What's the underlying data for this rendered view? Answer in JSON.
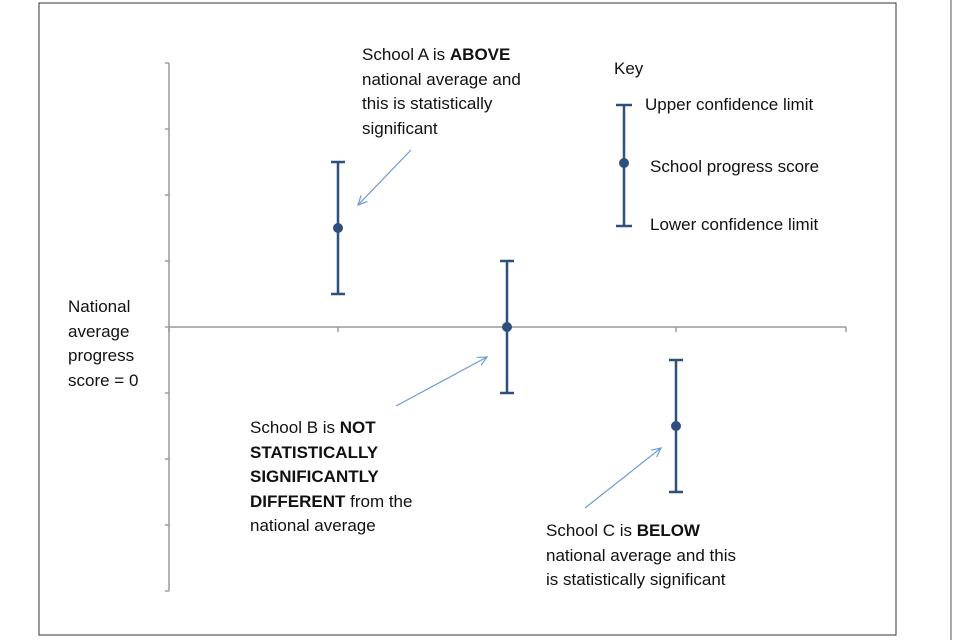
{
  "chart_data": {
    "type": "errorbar",
    "title": "",
    "xlabel": "",
    "ylabel": "",
    "ylim": [
      -4,
      4
    ],
    "categories": [
      "School A",
      "School B",
      "School C"
    ],
    "series": [
      {
        "name": "School progress score",
        "values": [
          1.5,
          0,
          -1.5
        ],
        "upper": [
          2.5,
          1,
          -0.5
        ],
        "lower": [
          0.5,
          -1,
          -2.5
        ]
      }
    ],
    "baseline_label": [
      "National",
      "average",
      "progress",
      "score = 0"
    ],
    "key": {
      "title": "Key",
      "upper": "Upper confidence limit",
      "point": "School progress score",
      "lower": "Lower confidence limit"
    },
    "annotations": {
      "school_a": {
        "l1_a": "School A is ",
        "l1_b": "ABOVE",
        "l2": "national average and",
        "l3": "this is statistically",
        "l4": "significant"
      },
      "school_b": {
        "l1_a": "School B is ",
        "l1_b": "NOT",
        "l2": "STATISTICALLY",
        "l3": "SIGNIFICANTLY",
        "l4_a": "DIFFERENT",
        "l4_b": " from the",
        "l5": "national average"
      },
      "school_c": {
        "l1_a": "School C is ",
        "l1_b": "BELOW",
        "l2": "national average and this",
        "l3": "is statistically significant"
      }
    },
    "colors": {
      "marker": "#2f4f7f",
      "axis": "#9a9a9a",
      "arrow": "#6e9bd1",
      "frame": "#333333"
    }
  }
}
